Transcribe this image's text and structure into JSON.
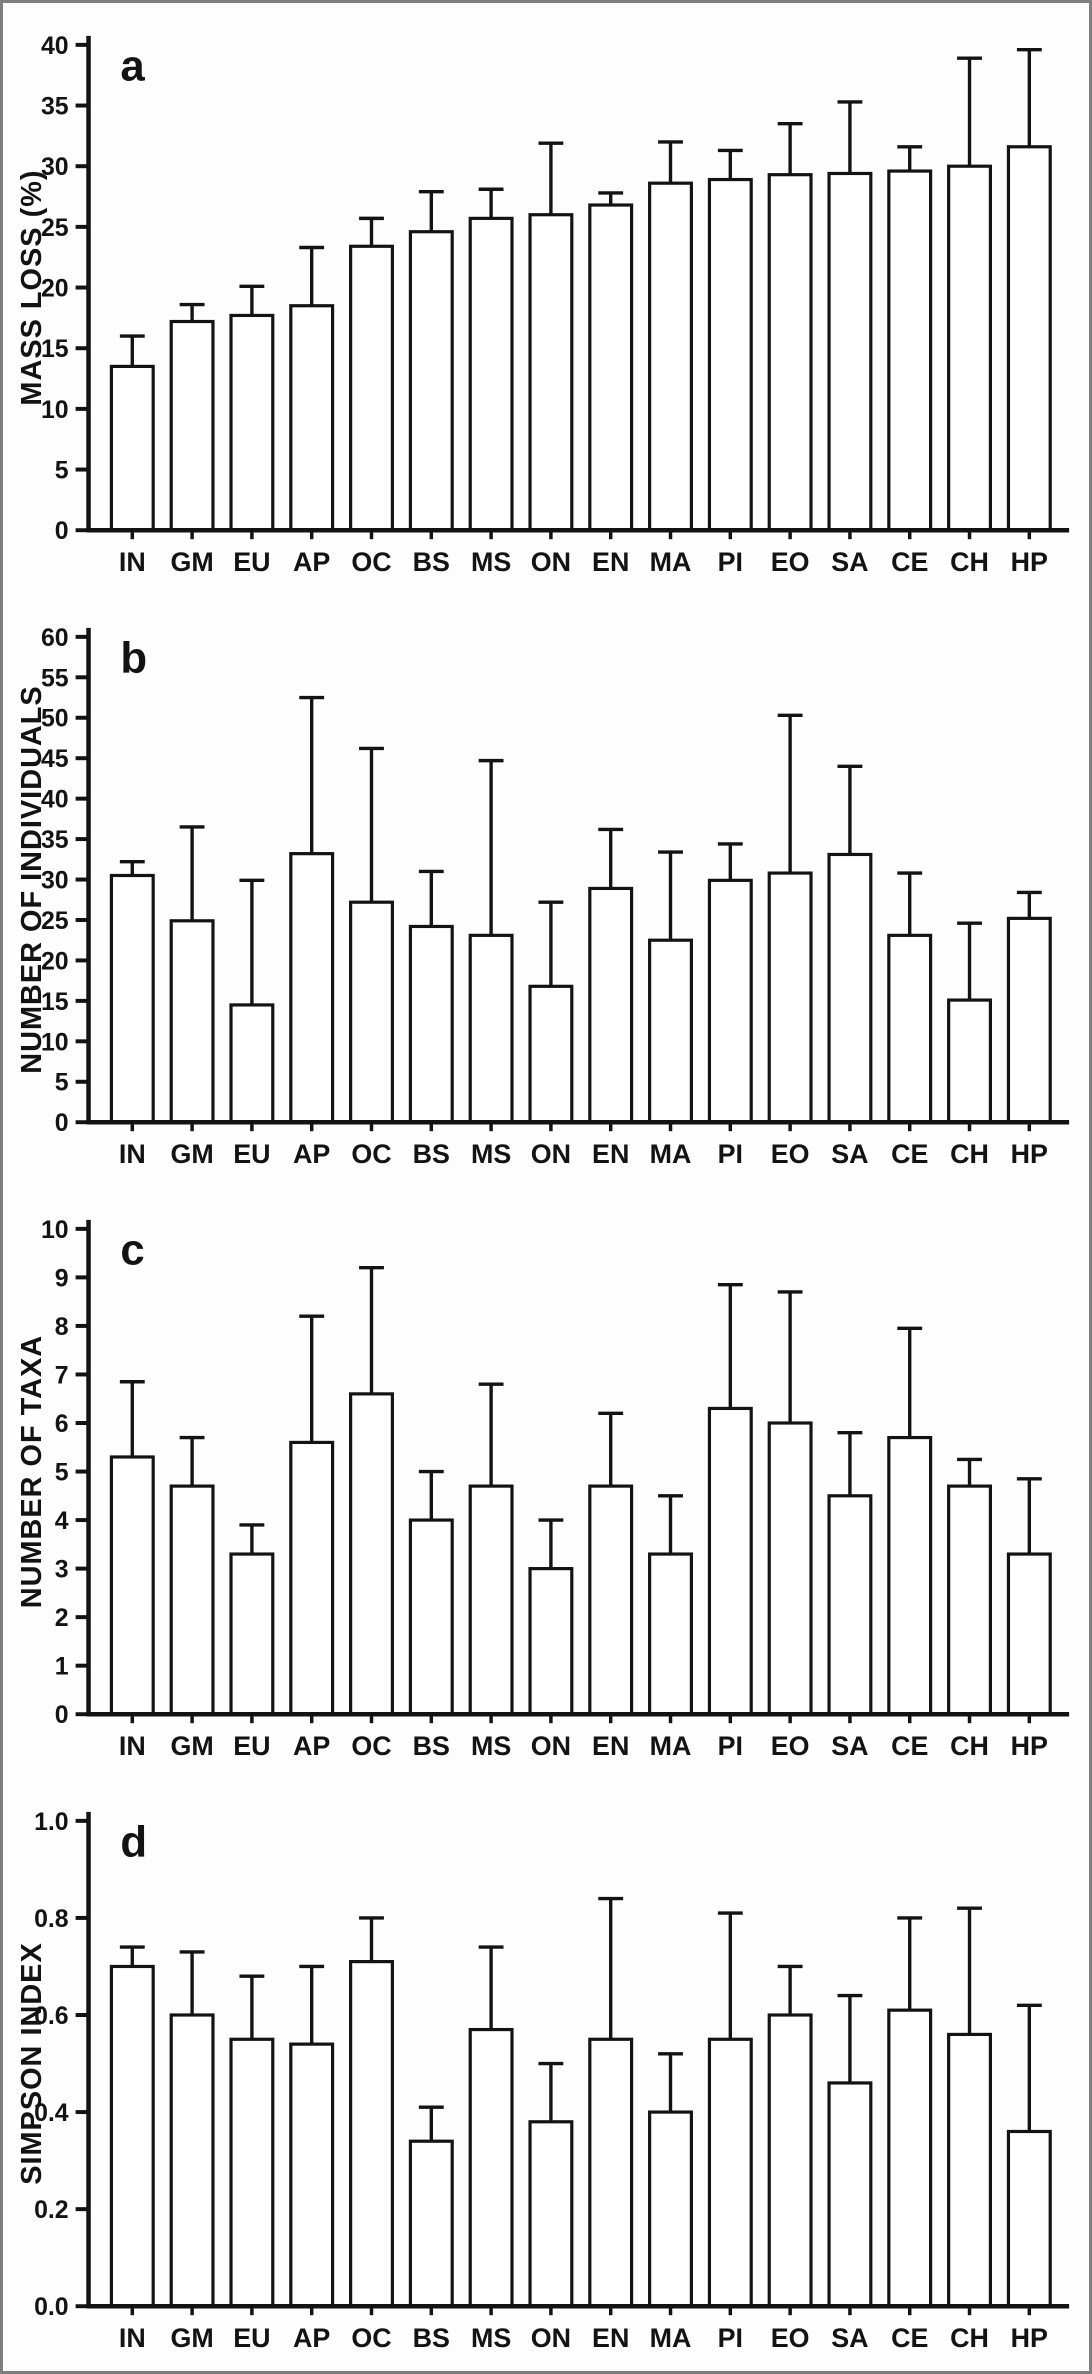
{
  "figure": {
    "description": "Four stacked bar chart panels with upper standard-deviation error bars",
    "background": "#fdfdfd",
    "border_color": "#7e7e7e",
    "ink_color": "#131313",
    "bar_fill": "#ffffff",
    "categories": [
      "IN",
      "GM",
      "EU",
      "AP",
      "OC",
      "BS",
      "MS",
      "ON",
      "EN",
      "MA",
      "PI",
      "EO",
      "SA",
      "CE",
      "CH",
      "HP"
    ]
  },
  "chart_data": [
    {
      "type": "bar",
      "panel_letter": "a",
      "title": "",
      "xlabel": "",
      "ylabel": "MASS LOSS (%)",
      "ylim": [
        0,
        40
      ],
      "ytick_step": 5,
      "ytick_decimals": 0,
      "grid": false,
      "legend": "none",
      "error_bars": "upper whiskers with caps",
      "categories": [
        "IN",
        "GM",
        "EU",
        "AP",
        "OC",
        "BS",
        "MS",
        "ON",
        "EN",
        "MA",
        "PI",
        "EO",
        "SA",
        "CE",
        "CH",
        "HP"
      ],
      "values": [
        13.5,
        17.2,
        17.7,
        18.5,
        23.4,
        24.6,
        25.7,
        26.0,
        26.8,
        28.6,
        28.9,
        29.3,
        29.4,
        29.6,
        30.0,
        31.6
      ],
      "errors_upper": [
        2.5,
        1.4,
        2.4,
        4.8,
        2.3,
        3.3,
        2.4,
        5.9,
        1.0,
        3.4,
        2.4,
        4.2,
        5.9,
        2.0,
        8.9,
        8.0
      ]
    },
    {
      "type": "bar",
      "panel_letter": "b",
      "title": "",
      "xlabel": "",
      "ylabel": "NUMBER OF INDIVIDUALS",
      "ylim": [
        0,
        60
      ],
      "ytick_step": 5,
      "ytick_decimals": 0,
      "grid": false,
      "legend": "none",
      "error_bars": "upper whiskers with caps",
      "categories": [
        "IN",
        "GM",
        "EU",
        "AP",
        "OC",
        "BS",
        "MS",
        "ON",
        "EN",
        "MA",
        "PI",
        "EO",
        "SA",
        "CE",
        "CH",
        "HP"
      ],
      "values": [
        30.5,
        24.9,
        14.5,
        33.2,
        27.2,
        24.2,
        23.1,
        16.8,
        28.9,
        22.5,
        29.9,
        30.8,
        33.1,
        23.1,
        15.1,
        25.2
      ],
      "errors_upper": [
        1.7,
        11.6,
        15.4,
        19.3,
        19.0,
        6.8,
        21.6,
        10.4,
        7.3,
        10.9,
        4.5,
        19.5,
        10.9,
        7.7,
        9.5,
        3.2
      ]
    },
    {
      "type": "bar",
      "panel_letter": "c",
      "title": "",
      "xlabel": "",
      "ylabel": "NUMBER OF TAXA",
      "ylim": [
        0,
        10
      ],
      "ytick_step": 1,
      "ytick_decimals": 0,
      "grid": false,
      "legend": "none",
      "error_bars": "upper whiskers with caps",
      "categories": [
        "IN",
        "GM",
        "EU",
        "AP",
        "OC",
        "BS",
        "MS",
        "ON",
        "EN",
        "MA",
        "PI",
        "EO",
        "SA",
        "CE",
        "CH",
        "HP"
      ],
      "values": [
        5.3,
        4.7,
        3.3,
        5.6,
        6.6,
        4.0,
        4.7,
        3.0,
        4.7,
        3.3,
        6.3,
        6.0,
        4.5,
        5.7,
        4.7,
        3.3
      ],
      "errors_upper": [
        1.55,
        1.0,
        0.6,
        2.6,
        2.6,
        1.0,
        2.1,
        1.0,
        1.5,
        1.2,
        2.55,
        2.7,
        1.3,
        2.25,
        0.55,
        1.55
      ]
    },
    {
      "type": "bar",
      "panel_letter": "d",
      "title": "",
      "xlabel": "",
      "ylabel": "SIMPSON INDEX",
      "ylim": [
        0,
        1.0
      ],
      "ytick_step": 0.2,
      "ytick_decimals": 1,
      "grid": false,
      "legend": "none",
      "error_bars": "upper whiskers with caps",
      "categories": [
        "IN",
        "GM",
        "EU",
        "AP",
        "OC",
        "BS",
        "MS",
        "ON",
        "EN",
        "MA",
        "PI",
        "EO",
        "SA",
        "CE",
        "CH",
        "HP"
      ],
      "values": [
        0.7,
        0.6,
        0.55,
        0.54,
        0.71,
        0.34,
        0.57,
        0.38,
        0.55,
        0.4,
        0.55,
        0.6,
        0.46,
        0.61,
        0.56,
        0.36
      ],
      "errors_upper": [
        0.04,
        0.13,
        0.13,
        0.16,
        0.09,
        0.07,
        0.17,
        0.12,
        0.29,
        0.12,
        0.26,
        0.1,
        0.18,
        0.19,
        0.26,
        0.26
      ]
    }
  ]
}
